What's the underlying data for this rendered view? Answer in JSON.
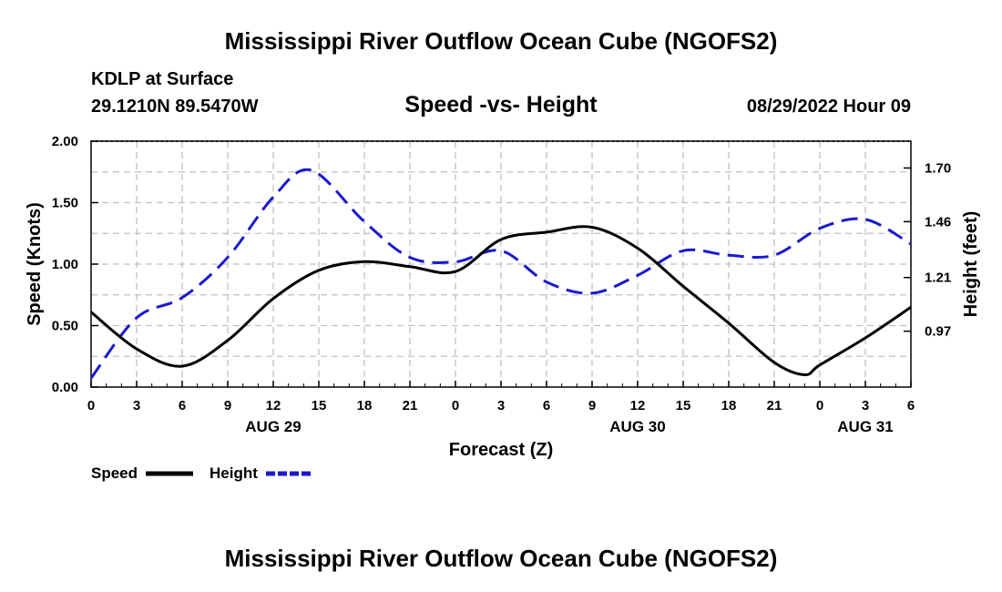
{
  "header": {
    "title": "Mississippi River Outflow Ocean Cube (NGOFS2)",
    "station": "KDLP at Surface",
    "coords": "29.1210N  89.5470W",
    "subtitle": "Speed -vs- Height",
    "datetime": "08/29/2022 Hour 09"
  },
  "footer": {
    "title": "Mississippi River Outflow Ocean Cube (NGOFS2)"
  },
  "legend": {
    "speed_label": "Speed",
    "height_label": "Height"
  },
  "colors": {
    "speed": "#000000",
    "height": "#1a1acc",
    "grid": "#c0c0c0"
  },
  "chart_data": {
    "type": "line",
    "title": "Speed -vs- Height",
    "xlabel": "Forecast (Z)",
    "ylabel": "Speed (Knots)",
    "y2label": "Height (feet)",
    "xlim": [
      0,
      54
    ],
    "ylim": [
      0,
      2
    ],
    "y2lim": [
      0.72,
      1.82
    ],
    "x_ticks": [
      0,
      3,
      6,
      9,
      12,
      15,
      18,
      21,
      24,
      27,
      30,
      33,
      36,
      39,
      42,
      45,
      48,
      51,
      54
    ],
    "x_tick_labels": [
      "0",
      "3",
      "6",
      "9",
      "12",
      "15",
      "18",
      "21",
      "0",
      "3",
      "6",
      "9",
      "12",
      "15",
      "18",
      "21",
      "0",
      "3",
      "6"
    ],
    "date_labels": [
      {
        "x": 12,
        "label": "AUG 29"
      },
      {
        "x": 36,
        "label": "AUG 30"
      },
      {
        "x": 51,
        "label": "AUG 31"
      }
    ],
    "y_ticks": [
      0,
      0.5,
      1.0,
      1.5,
      2.0
    ],
    "y_tick_labels": [
      "0.00",
      "0.50",
      "1.00",
      "1.50",
      "2.00"
    ],
    "y2_ticks": [
      0.97,
      1.21,
      1.46,
      1.7
    ],
    "y2_tick_labels": [
      "0.97",
      "1.21",
      "1.46",
      "1.70"
    ],
    "grid": true,
    "series": [
      {
        "name": "Speed",
        "axis": "left",
        "style": "solid",
        "x": [
          0,
          3,
          6,
          9,
          12,
          15,
          18,
          21,
          24,
          27,
          30,
          33,
          36,
          39,
          42,
          45,
          47,
          48,
          51,
          54
        ],
        "values": [
          0.61,
          0.31,
          0.17,
          0.38,
          0.72,
          0.95,
          1.02,
          0.98,
          0.94,
          1.2,
          1.26,
          1.3,
          1.13,
          0.82,
          0.52,
          0.2,
          0.1,
          0.18,
          0.4,
          0.65
        ]
      },
      {
        "name": "Height",
        "axis": "right",
        "style": "dashed",
        "x": [
          0,
          3,
          6,
          9,
          12,
          14.5,
          18,
          21,
          24,
          27,
          30,
          33,
          36,
          39,
          42,
          45,
          48,
          51,
          54
        ],
        "values": [
          0.76,
          1.03,
          1.12,
          1.3,
          1.57,
          1.69,
          1.46,
          1.3,
          1.28,
          1.33,
          1.19,
          1.14,
          1.22,
          1.33,
          1.31,
          1.31,
          1.43,
          1.47,
          1.36
        ]
      }
    ]
  }
}
